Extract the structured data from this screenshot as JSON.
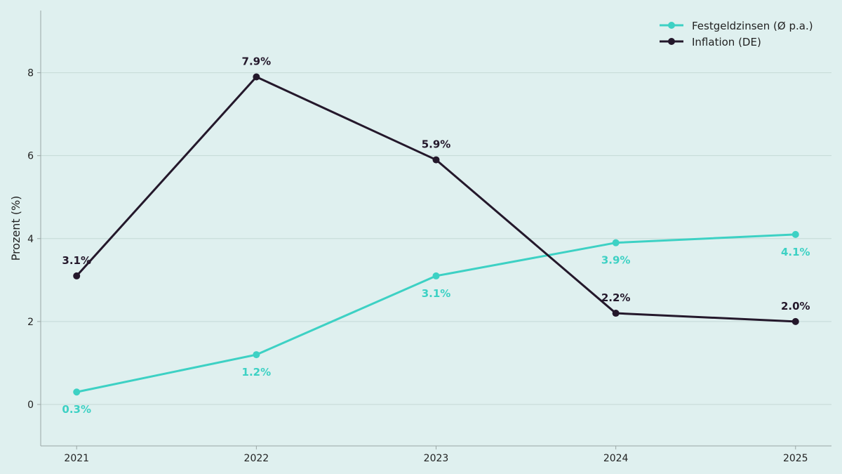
{
  "chart_data": {
    "type": "line",
    "title": "",
    "xlabel": "",
    "ylabel": "Prozent (%)",
    "x": [
      "2021",
      "2022",
      "2023",
      "2024",
      "2025"
    ],
    "series": [
      {
        "name": "Festgeldzinsen (Ø p.a.)",
        "values": [
          0.3,
          1.2,
          3.1,
          3.9,
          4.1
        ],
        "labels": [
          "0.3%",
          "1.2%",
          "3.1%",
          "3.9%",
          "4.1%"
        ],
        "color": "#3dd1c4",
        "label_position": "below"
      },
      {
        "name": "Inflation (DE)",
        "values": [
          3.1,
          7.9,
          5.9,
          2.2,
          2.0
        ],
        "labels": [
          "3.1%",
          "7.9%",
          "5.9%",
          "2.2%",
          "2.0%"
        ],
        "color": "#24182b",
        "label_position": "above"
      }
    ],
    "ylim": [
      -1,
      9.5
    ],
    "yticks": [
      0,
      2,
      4,
      6,
      8
    ],
    "xlim": [
      -0.2,
      4.2
    ],
    "grid": "horizontal",
    "legend": "top-right",
    "colors": {
      "background": "#dff0ef",
      "grid": "#c4d9d6",
      "axis": "#9aa6a5",
      "text": "#222222"
    }
  }
}
